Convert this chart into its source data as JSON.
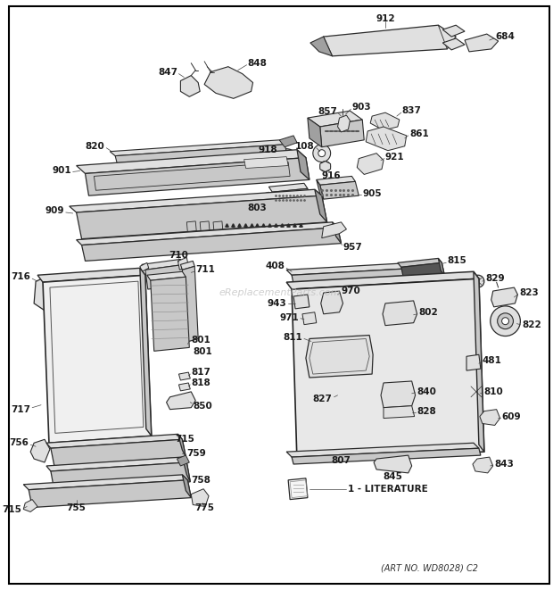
{
  "background_color": "#ffffff",
  "border_color": "#000000",
  "art_no": "(ART NO. WD8028) C2",
  "watermark": "eReplacementParts.com",
  "fig_width": 6.2,
  "fig_height": 6.61,
  "dpi": 100,
  "text_color": "#1a1a1a",
  "line_color": "#2a2a2a",
  "gray_fill": "#c8c8c8",
  "light_gray": "#e0e0e0",
  "mid_gray": "#a0a0a0"
}
